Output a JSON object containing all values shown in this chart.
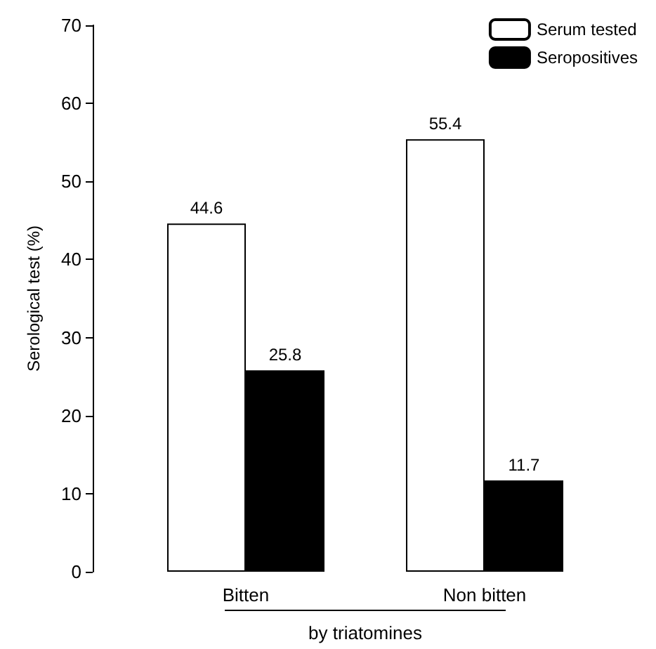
{
  "chart_data": {
    "type": "bar",
    "ylabel": "Serological test (%)",
    "xlabel": "by triatomines",
    "categories": [
      "Bitten",
      "Non bitten"
    ],
    "series": [
      {
        "name": "Serum tested",
        "color": "#ffffff",
        "values": [
          44.6,
          55.4
        ]
      },
      {
        "name": "Seropositives",
        "color": "#000000",
        "values": [
          25.8,
          11.7
        ]
      }
    ],
    "ylim": [
      0,
      70
    ],
    "yticks": [
      0,
      10,
      20,
      30,
      40,
      50,
      60,
      70
    ],
    "data_labels": true,
    "legend": "top right",
    "grid": false
  }
}
